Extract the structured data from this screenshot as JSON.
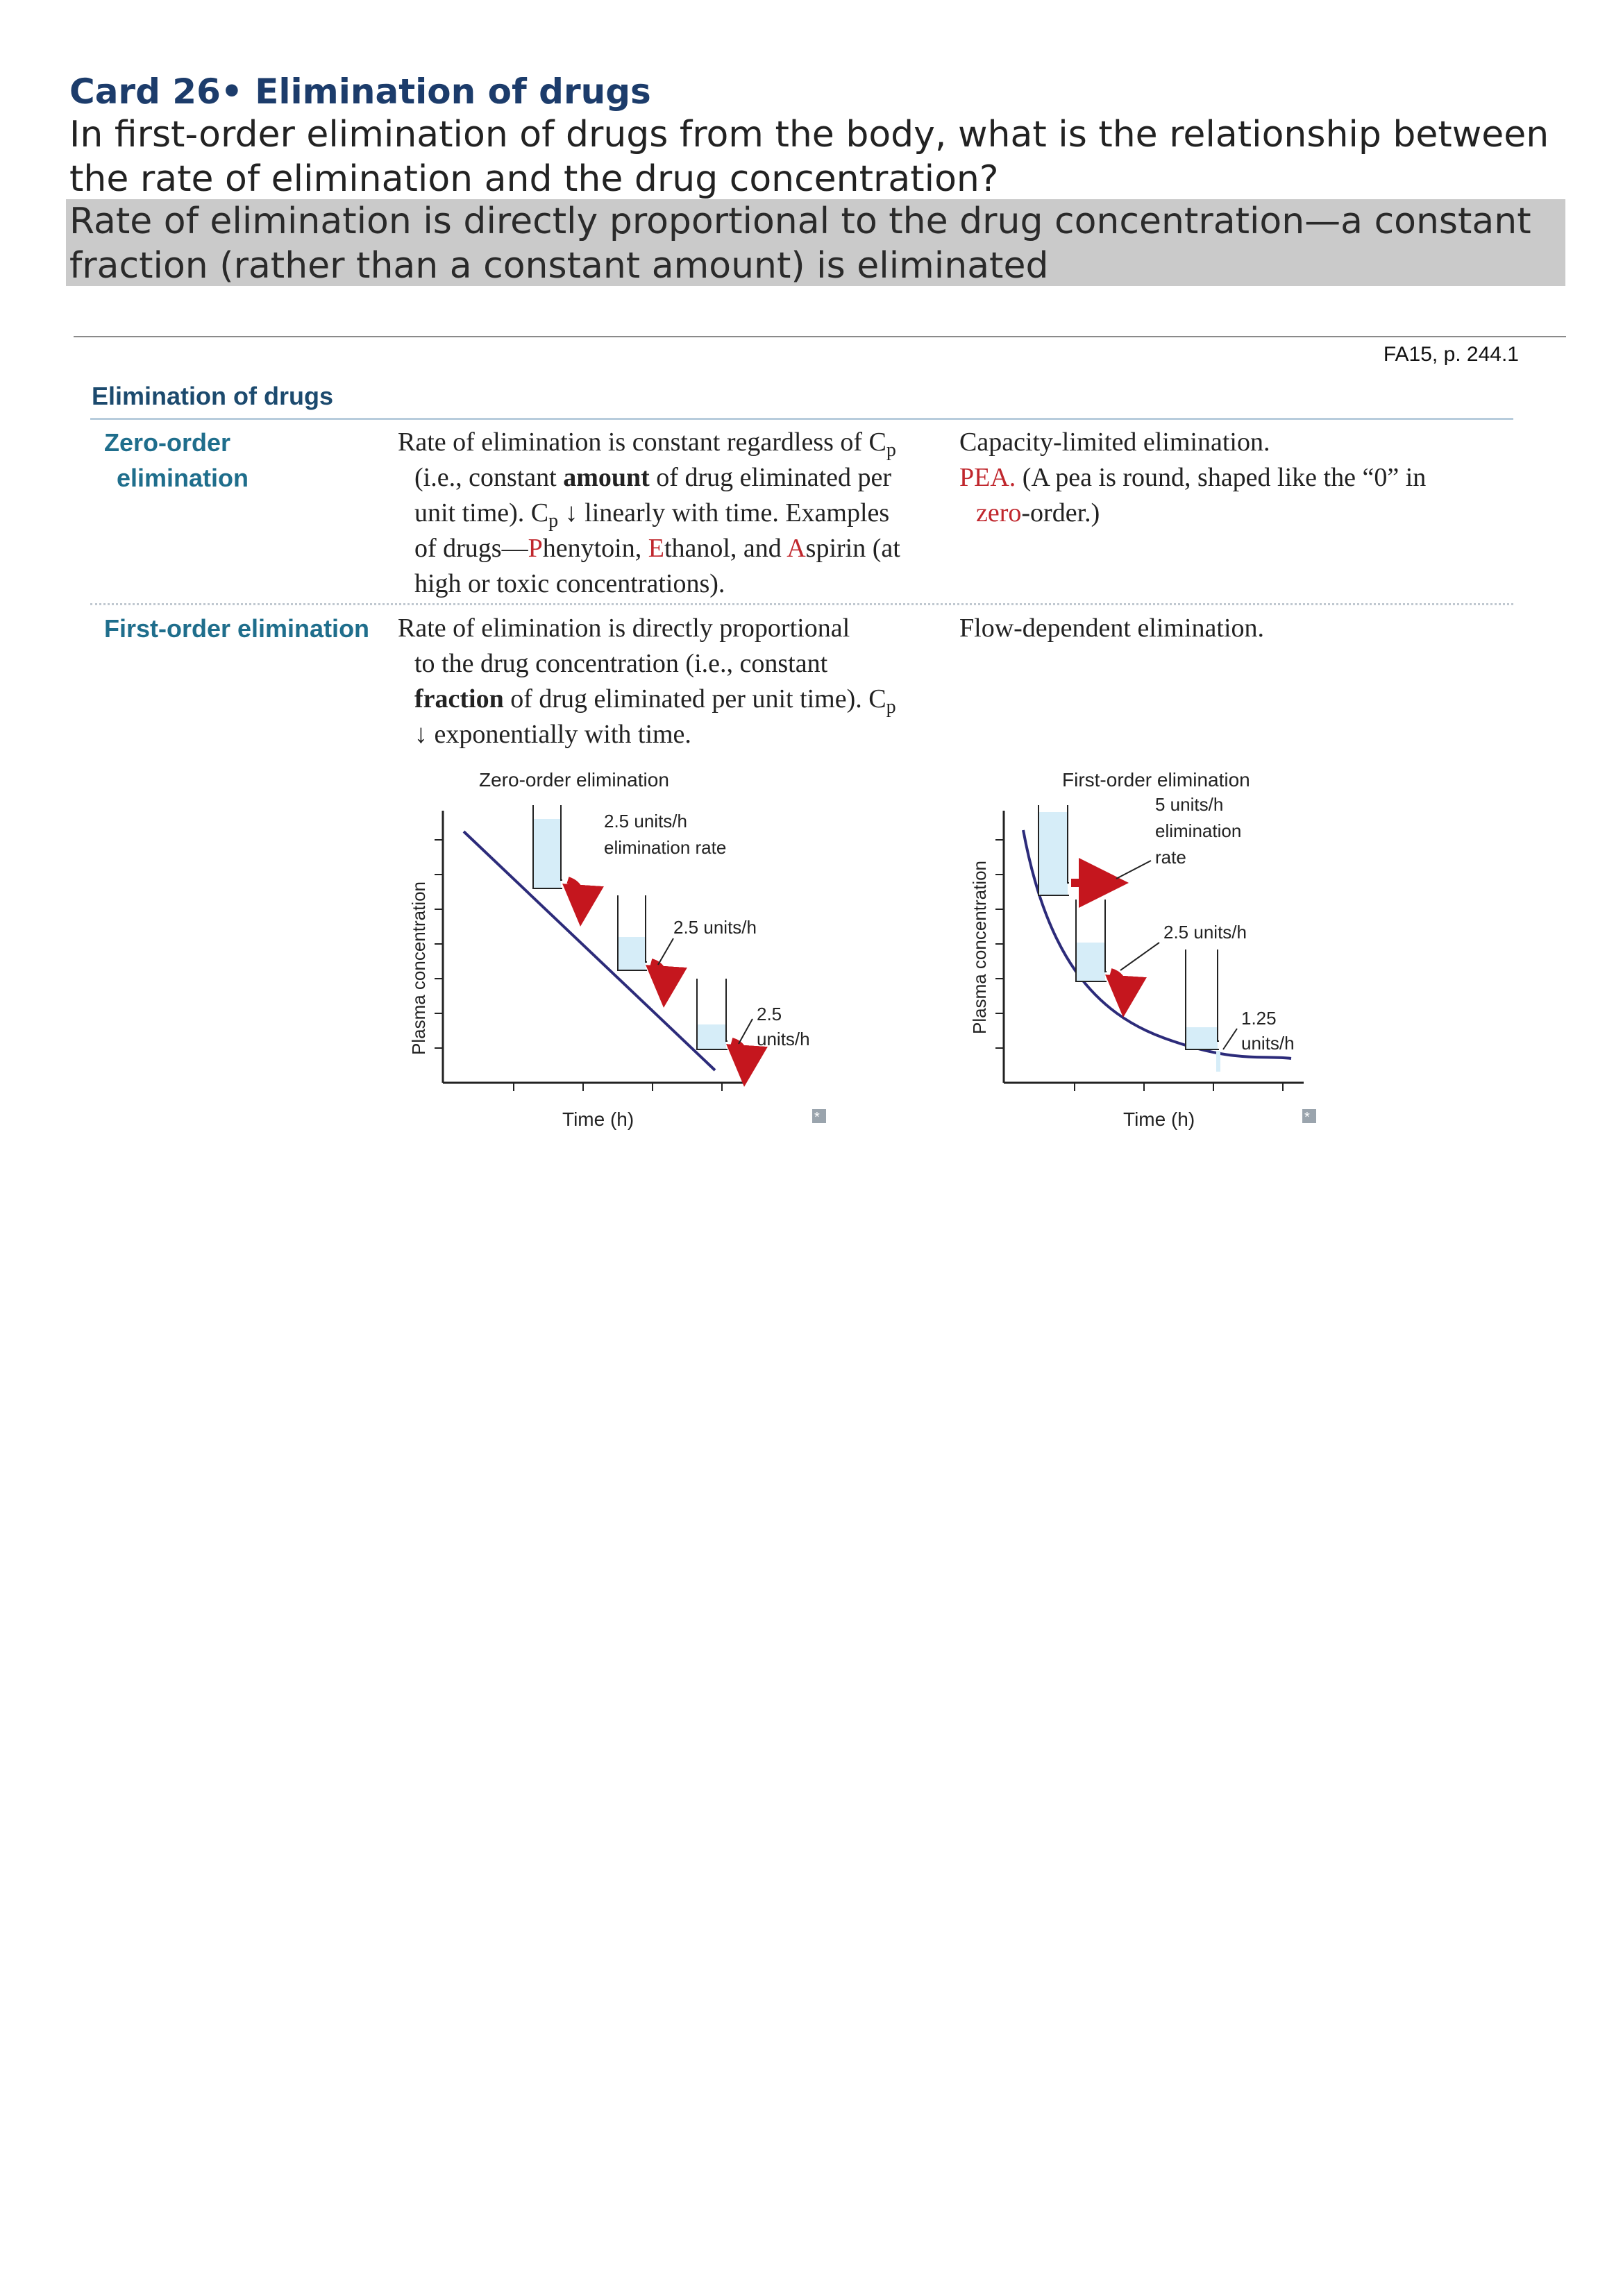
{
  "card": {
    "title": "Card 26• Elimination of drugs",
    "question": "In first-order elimination of drugs from the body, what is the relationship between the rate of elimination and the drug concentration?",
    "answer": "Rate of elimination is directly proportional to the drug concentration—a constant fraction (rather than a constant amount) is eliminated"
  },
  "reference": "FA15, p. 244.1",
  "section": {
    "title": "Elimination of drugs",
    "zero_order": {
      "label_line1": "Zero-order",
      "label_line2": "elimination",
      "desc1": "Rate of elimination is constant regardless of C",
      "desc1_sub": "p",
      "desc2a": "(i.e., constant ",
      "desc2_bold": "amount",
      "desc2b": " of drug eliminated per",
      "desc3a": "unit time). C",
      "desc3_sub": "p",
      "desc3_arrow": "↓",
      "desc3b": " linearly with time. Examples",
      "desc4a": "of drugs—",
      "desc4_P": "P",
      "desc4b": "henytoin, ",
      "desc4_E": "E",
      "desc4c": "thanol, and ",
      "desc4_A": "A",
      "desc4d": "spirin (at",
      "desc5": "high or toxic concentrations).",
      "note1": "Capacity-limited elimination.",
      "note2_red": "PEA.",
      "note2b": " (A pea is round, shaped like the “0” in",
      "note3_red": "zero",
      "note3b": "-order.)"
    },
    "first_order": {
      "label": "First-order elimination",
      "desc1": "Rate of elimination is directly proportional",
      "desc2": "to the drug concentration (i.e., constant",
      "desc3_bold": "fraction",
      "desc3b": " of drug eliminated per unit time). C",
      "desc3_sub": "p",
      "desc4_arrow": "↓",
      "desc4b": " exponentially with time.",
      "note1": "Flow-dependent elimination."
    }
  },
  "chart_data": [
    {
      "type": "line",
      "title": "Zero-order elimination",
      "xlabel": "Time (h)",
      "ylabel": "Plasma concentration",
      "shape": "linear decline",
      "annotations": [
        "2.5 units/h elimination rate",
        "2.5 units/h",
        "2.5 units/h"
      ],
      "rates": [
        2.5,
        2.5,
        2.5
      ]
    },
    {
      "type": "line",
      "title": "First-order elimination",
      "xlabel": "Time (h)",
      "ylabel": "Plasma concentration",
      "shape": "exponential decline",
      "annotations": [
        "5 units/h elimination rate",
        "2.5 units/h",
        "1.25 units/h"
      ],
      "rates": [
        5,
        2.5,
        1.25
      ]
    }
  ],
  "figure_text": {
    "zero": {
      "title": "Zero-order elimination",
      "ylabel": "Plasma concentration",
      "xlabel": "Time (h)",
      "a1_l1": "2.5 units/h",
      "a1_l2": "elimination rate",
      "a2": "2.5 units/h",
      "a3_l1": "2.5",
      "a3_l2": "units/h"
    },
    "first": {
      "title": "First-order elimination",
      "ylabel": "Plasma concentration",
      "xlabel": "Time (h)",
      "a1_l1": "5 units/h",
      "a1_l2": "elimination",
      "a1_l3": "rate",
      "a2": "2.5 units/h",
      "a3_l1": "1.25",
      "a3_l2": "units/h"
    }
  },
  "colors": {
    "title": "#1c3c6b",
    "answer_bg": "#cacaca",
    "label_teal": "#1f6e8c",
    "mnemonic_red": "#c0272d",
    "curve": "#2c2b7a",
    "fluid": "#d6edf8",
    "arrow": "#c5161e"
  },
  "icons": [
    "zoom-icon"
  ]
}
